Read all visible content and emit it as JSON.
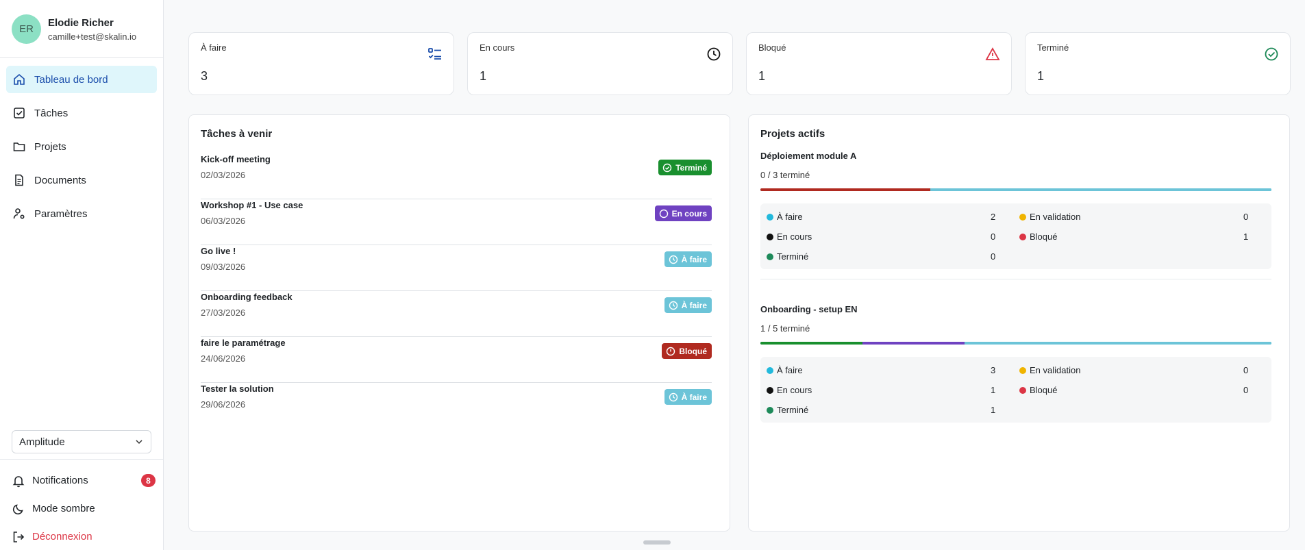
{
  "user": {
    "initials": "ER",
    "name": "Elodie Richer",
    "email": "camille+test@skalin.io"
  },
  "nav": [
    {
      "label": "Tableau de bord",
      "icon": "home-icon",
      "active": true
    },
    {
      "label": "Tâches",
      "icon": "checkbox-icon"
    },
    {
      "label": "Projets",
      "icon": "folder-icon"
    },
    {
      "label": "Documents",
      "icon": "document-icon"
    },
    {
      "label": "Paramètres",
      "icon": "user-settings-icon"
    }
  ],
  "workspace": {
    "selected": "Amplitude"
  },
  "bottom": {
    "notifications": "Notifications",
    "notifications_count": "8",
    "dark_mode": "Mode sombre",
    "logout": "Déconnexion"
  },
  "stats": [
    {
      "label": "À faire",
      "value": "3",
      "icon": "list-check-icon",
      "color": "#1a4dab"
    },
    {
      "label": "En cours",
      "value": "1",
      "icon": "clock-icon",
      "color": "#111111"
    },
    {
      "label": "Bloqué",
      "value": "1",
      "icon": "warning-icon",
      "color": "#dc3545"
    },
    {
      "label": "Terminé",
      "value": "1",
      "icon": "check-circle-icon",
      "color": "#198754"
    }
  ],
  "upcoming": {
    "title": "Tâches à venir",
    "tasks": [
      {
        "name": "Kick-off meeting",
        "date": "02/03/2026",
        "status": "Terminé"
      },
      {
        "name": "Workshop #1 - Use case",
        "date": "06/03/2026",
        "status": "En cours"
      },
      {
        "name": "Go live !",
        "date": "09/03/2026",
        "status": "À faire"
      },
      {
        "name": "Onboarding feedback",
        "date": "27/03/2026",
        "status": "À faire"
      },
      {
        "name": "faire le paramétrage",
        "date": "24/06/2026",
        "status": "Bloqué"
      },
      {
        "name": "Tester la solution",
        "date": "29/06/2026",
        "status": "À faire"
      }
    ]
  },
  "projects": {
    "title": "Projets actifs",
    "items": [
      {
        "name": "Déploiement module A",
        "progress": "0 / 3 terminé",
        "segments": [
          {
            "status": "Bloqué",
            "fraction": 0.333
          },
          {
            "status": "À faire",
            "fraction": 0.667
          }
        ],
        "counts": {
          "todo": "2",
          "in_progress": "0",
          "done": "0",
          "validation": "0",
          "blocked": "1"
        }
      },
      {
        "name": "Onboarding - setup EN",
        "progress": "1 / 5 terminé",
        "segments": [
          {
            "status": "Terminé",
            "fraction": 0.2
          },
          {
            "status": "En cours",
            "fraction": 0.2
          },
          {
            "status": "À faire",
            "fraction": 0.6
          }
        ],
        "counts": {
          "todo": "3",
          "in_progress": "1",
          "done": "1",
          "validation": "0",
          "blocked": "0"
        }
      }
    ],
    "labels": {
      "todo": "À faire",
      "in_progress": "En cours",
      "done": "Terminé",
      "validation": "En validation",
      "blocked": "Bloqué"
    }
  },
  "status_colors": {
    "Terminé": "#198f2e",
    "En cours": "#6f42c1",
    "À faire": "#6cc4d8",
    "Bloqué": "#b02a20",
    "En validation": "#f0b400",
    "legend_todo": "#22b9dc",
    "legend_progress": "#111111",
    "legend_done": "#1e8a5a",
    "legend_blocked": "#dc3545"
  }
}
